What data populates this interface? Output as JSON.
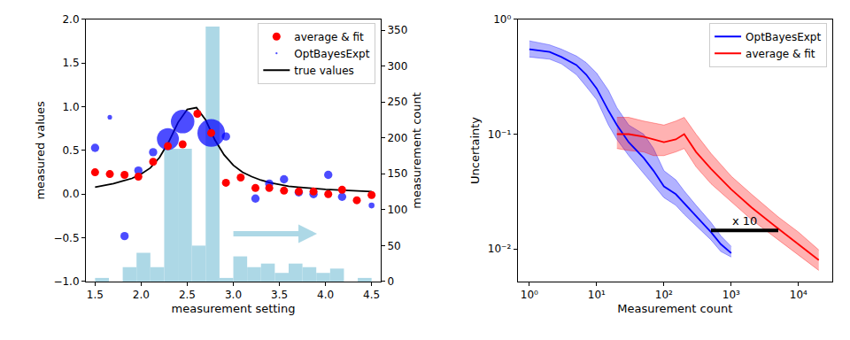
{
  "chart_data": [
    {
      "type": "scatter",
      "x_label": "measurement setting",
      "y_label": "measured values",
      "y2_label": "measurement count",
      "xlim": [
        1.4,
        4.6
      ],
      "xticks": [
        1.5,
        {
          "value": 2,
          "label": "2.0"
        },
        2.5,
        {
          "value": 3,
          "label": "3.0"
        },
        3.5,
        {
          "value": 4,
          "label": "4.0"
        },
        4.5
      ],
      "ylim": [
        -1,
        2
      ],
      "yticks": [
        {
          "value": -1,
          "label": "−1.0"
        },
        {
          "value": -0.5,
          "label": "−0.5"
        },
        {
          "value": 0,
          "label": "0.0"
        },
        0.5,
        {
          "value": 1,
          "label": "1.0"
        },
        1.5,
        {
          "value": 2,
          "label": "2.0"
        }
      ],
      "y2lim": [
        0,
        365
      ],
      "y2ticks": [
        0,
        50,
        100,
        150,
        200,
        250,
        300,
        350
      ],
      "legend": "upper right",
      "series": [
        {
          "type": "bar",
          "axis": "y2",
          "color": "#add8e6",
          "bins": [
            1.5,
            1.65,
            1.8,
            1.95,
            2.1,
            2.25,
            2.4,
            2.55,
            2.7,
            2.85,
            3.0,
            3.15,
            3.3,
            3.45,
            3.6,
            3.75,
            3.9,
            4.05,
            4.2,
            4.35,
            4.5
          ],
          "values": [
            5,
            0,
            20,
            40,
            20,
            185,
            185,
            50,
            355,
            5,
            35,
            20,
            25,
            12,
            25,
            20,
            12,
            18,
            0,
            5
          ]
        },
        {
          "name": "true values",
          "type": "line",
          "color": "#000000",
          "x": [
            1.5,
            1.6,
            1.7,
            1.8,
            1.9,
            2.0,
            2.1,
            2.2,
            2.3,
            2.4,
            2.5,
            2.6,
            2.7,
            2.8,
            2.9,
            3.0,
            3.1,
            3.2,
            3.3,
            3.4,
            3.5,
            3.6,
            3.7,
            3.8,
            3.9,
            4.0,
            4.1,
            4.2,
            4.3,
            4.4,
            4.5
          ],
          "values": [
            0.08,
            0.1,
            0.12,
            0.15,
            0.18,
            0.23,
            0.3,
            0.42,
            0.6,
            0.82,
            0.97,
            0.99,
            0.85,
            0.62,
            0.45,
            0.33,
            0.25,
            0.2,
            0.16,
            0.13,
            0.11,
            0.09,
            0.08,
            0.07,
            0.06,
            0.055,
            0.05,
            0.045,
            0.04,
            0.035,
            0.03
          ]
        },
        {
          "name": "OptBayesExpt",
          "type": "scatter",
          "color": "#0000ff",
          "x": [
            1.5,
            1.66,
            1.82,
            1.97,
            2.13,
            2.29,
            2.45,
            2.76,
            2.92,
            3.24,
            3.39,
            3.55,
            3.71,
            3.87,
            4.03,
            4.18,
            4.5
          ],
          "values": [
            0.53,
            0.88,
            -0.48,
            0.27,
            0.48,
            0.63,
            0.83,
            0.7,
            0.66,
            -0.05,
            0.12,
            0.17,
            0.02,
            0.0,
            0.22,
            -0.03,
            -0.13
          ],
          "sizes": [
            1,
            0.3,
            1,
            1,
            1,
            7,
            8,
            11,
            1,
            1,
            1,
            1,
            1,
            1,
            1,
            1,
            0.5
          ]
        },
        {
          "name": "average & fit",
          "type": "scatter",
          "color": "#ff0000",
          "x": [
            1.5,
            1.66,
            1.82,
            1.97,
            2.13,
            2.29,
            2.45,
            2.61,
            2.76,
            2.92,
            3.08,
            3.24,
            3.39,
            3.55,
            3.71,
            3.87,
            4.03,
            4.18,
            4.34,
            4.5
          ],
          "values": [
            0.25,
            0.23,
            0.22,
            0.2,
            0.37,
            0.55,
            0.57,
            0.92,
            0.7,
            0.13,
            0.19,
            0.07,
            0.07,
            0.04,
            0.03,
            0.03,
            0.0,
            0.05,
            -0.07,
            -0.01
          ]
        }
      ]
    },
    {
      "type": "line",
      "log": true,
      "x_label": "Measurement count",
      "y_label": "Uncertainty",
      "xlim": [
        0.67,
        31600
      ],
      "xticks": [
        {
          "value": 1,
          "label": "10⁰"
        },
        {
          "value": 10,
          "label": "10¹"
        },
        {
          "value": 100,
          "label": "10²"
        },
        {
          "value": 1000,
          "label": "10³"
        },
        {
          "value": 10000,
          "label": "10⁴"
        }
      ],
      "ylim": [
        0.0052,
        1
      ],
      "yticks": [
        {
          "value": 0.01,
          "label": "10⁻²"
        },
        {
          "value": 0.1,
          "label": "10⁻¹"
        },
        {
          "value": 1,
          "label": "10⁰"
        }
      ],
      "legend": "upper right",
      "series": [
        {
          "name": "OptBayesExpt",
          "color": "#0000ff",
          "x": [
            1,
            2,
            3,
            5,
            7,
            10,
            15,
            20,
            30,
            50,
            70,
            100,
            150,
            200,
            300,
            500,
            700,
            1000
          ],
          "values": [
            0.55,
            0.52,
            0.47,
            0.4,
            0.33,
            0.25,
            0.16,
            0.12,
            0.085,
            0.062,
            0.048,
            0.035,
            0.03,
            0.025,
            0.019,
            0.014,
            0.011,
            0.0092
          ],
          "lower": [
            0.47,
            0.45,
            0.41,
            0.33,
            0.26,
            0.2,
            0.12,
            0.09,
            0.065,
            0.045,
            0.036,
            0.028,
            0.024,
            0.02,
            0.016,
            0.012,
            0.0095,
            0.0085
          ],
          "upper": [
            0.65,
            0.6,
            0.55,
            0.48,
            0.42,
            0.34,
            0.24,
            0.17,
            0.12,
            0.1,
            0.075,
            0.048,
            0.04,
            0.032,
            0.024,
            0.017,
            0.013,
            0.0105
          ]
        },
        {
          "name": "average & fit",
          "color": "#ff0000",
          "x": [
            20,
            30,
            50,
            70,
            100,
            150,
            200,
            300,
            500,
            1000,
            2000,
            5000,
            10000,
            20000
          ],
          "values": [
            0.1,
            0.1,
            0.095,
            0.09,
            0.085,
            0.09,
            0.1,
            0.07,
            0.05,
            0.033,
            0.023,
            0.015,
            0.011,
            0.008
          ],
          "lower": [
            0.075,
            0.072,
            0.07,
            0.065,
            0.065,
            0.07,
            0.075,
            0.052,
            0.037,
            0.026,
            0.018,
            0.012,
            0.0088,
            0.0065
          ],
          "upper": [
            0.14,
            0.14,
            0.13,
            0.125,
            0.12,
            0.13,
            0.14,
            0.1,
            0.068,
            0.043,
            0.03,
            0.019,
            0.014,
            0.0098
          ]
        }
      ],
      "annotations": [
        {
          "text": "x 10",
          "x": [
            500,
            5000
          ],
          "y": 0.0145
        }
      ]
    }
  ]
}
